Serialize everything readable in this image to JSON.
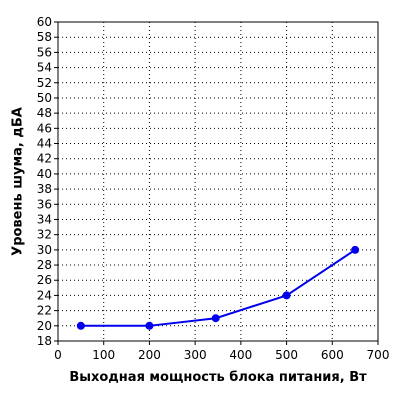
{
  "chart_data": {
    "type": "line",
    "title": "",
    "xlabel": "Выходная мощность блока питания, Вт",
    "ylabel": "Уровень шума, дБА",
    "xlim": [
      0,
      700
    ],
    "ylim": [
      18,
      60
    ],
    "xticks": [
      0,
      100,
      200,
      300,
      400,
      500,
      600,
      700
    ],
    "yticks": [
      18,
      20,
      22,
      24,
      26,
      28,
      30,
      32,
      34,
      36,
      38,
      40,
      42,
      44,
      46,
      48,
      50,
      52,
      54,
      56,
      58,
      60
    ],
    "grid": true,
    "legend": "none",
    "series": [
      {
        "color": "#0000ee",
        "x": [
          50,
          200,
          345,
          500,
          650
        ],
        "y": [
          20,
          20,
          21,
          24,
          30
        ]
      }
    ]
  }
}
